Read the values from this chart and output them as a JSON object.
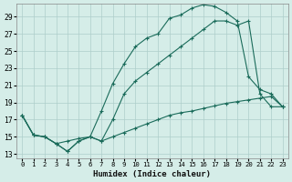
{
  "xlabel": "Humidex (Indice chaleur)",
  "background_color": "#d5ede8",
  "grid_color": "#aececa",
  "line_color": "#1a6b5a",
  "x_ticks": [
    0,
    1,
    2,
    3,
    4,
    5,
    6,
    7,
    8,
    9,
    10,
    11,
    12,
    13,
    14,
    15,
    16,
    17,
    18,
    19,
    20,
    21,
    22,
    23
  ],
  "y_ticks": [
    13,
    15,
    17,
    19,
    21,
    23,
    25,
    27,
    29
  ],
  "xlim": [
    -0.5,
    23.5
  ],
  "ylim": [
    12.5,
    30.5
  ],
  "line1_x": [
    0,
    1,
    2,
    3,
    4,
    5,
    6,
    7,
    8,
    9,
    10,
    11,
    12,
    13,
    14,
    15,
    16,
    17,
    18,
    19,
    20,
    21,
    22,
    23
  ],
  "line1_y": [
    17.5,
    15.2,
    15.0,
    14.2,
    14.5,
    14.8,
    15.0,
    14.5,
    15.0,
    15.5,
    16.0,
    16.5,
    17.0,
    17.5,
    17.8,
    18.0,
    18.3,
    18.6,
    18.9,
    19.1,
    19.3,
    19.5,
    19.7,
    18.5
  ],
  "line2_x": [
    0,
    1,
    2,
    3,
    4,
    5,
    6,
    7,
    8,
    9,
    10,
    11,
    12,
    13,
    14,
    15,
    16,
    17,
    18,
    19,
    20,
    21,
    22,
    23
  ],
  "line2_y": [
    17.5,
    15.2,
    15.0,
    14.2,
    13.3,
    14.5,
    15.0,
    18.0,
    21.2,
    23.5,
    25.5,
    26.5,
    27.0,
    28.8,
    29.2,
    30.0,
    30.4,
    30.2,
    29.5,
    28.5,
    22.0,
    20.5,
    20.0,
    18.5
  ],
  "line3_x": [
    0,
    1,
    2,
    3,
    4,
    5,
    6,
    7,
    8,
    9,
    10,
    11,
    12,
    13,
    14,
    15,
    16,
    17,
    18,
    19,
    20,
    21,
    22,
    23
  ],
  "line3_y": [
    17.5,
    15.2,
    15.0,
    14.2,
    13.3,
    14.5,
    15.0,
    14.5,
    17.0,
    20.0,
    21.5,
    22.5,
    23.5,
    24.5,
    25.5,
    26.5,
    27.5,
    28.5,
    28.5,
    28.0,
    28.5,
    20.0,
    18.5,
    18.5
  ]
}
